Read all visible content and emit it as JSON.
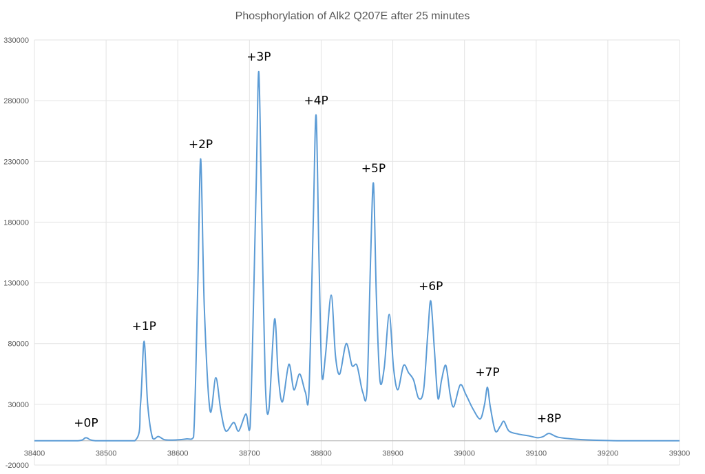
{
  "chart_data": {
    "type": "line",
    "title": "Phosphorylation of Alk2 Q207E after 25 minutes",
    "xlabel": "",
    "ylabel": "",
    "xlim": [
      38400,
      39300
    ],
    "ylim": [
      -20000,
      330000
    ],
    "grid": true,
    "legend": "none",
    "x_ticks": [
      38400,
      38500,
      38600,
      38700,
      38800,
      38900,
      39000,
      39100,
      39200,
      39300
    ],
    "x_tick_labels": [
      "38400",
      "38500",
      "38600",
      "38700",
      "38800",
      "38900",
      "39000",
      "39100",
      "39200",
      "39300"
    ],
    "y_ticks": [
      330000,
      280000,
      230000,
      180000,
      130000,
      80000,
      30000,
      -20000
    ],
    "y_tick_labels": [
      "330000",
      "280000",
      "230000",
      "180000",
      "130000",
      "80000",
      "30000",
      "-20000"
    ],
    "series": [
      {
        "color": "#5b9bd5",
        "points": [
          [
            38400,
            0
          ],
          [
            38460,
            0
          ],
          [
            38472,
            2500
          ],
          [
            38485,
            0
          ],
          [
            38540,
            0
          ],
          [
            38548,
            30000
          ],
          [
            38553,
            82000
          ],
          [
            38558,
            30000
          ],
          [
            38565,
            2000
          ],
          [
            38573,
            3500
          ],
          [
            38582,
            800
          ],
          [
            38598,
            700
          ],
          [
            38612,
            1500
          ],
          [
            38622,
            3000
          ],
          [
            38628,
            130000
          ],
          [
            38632,
            232000
          ],
          [
            38637,
            110000
          ],
          [
            38645,
            25000
          ],
          [
            38653,
            52000
          ],
          [
            38660,
            25000
          ],
          [
            38667,
            8000
          ],
          [
            38678,
            15000
          ],
          [
            38685,
            8000
          ],
          [
            38695,
            22000
          ],
          [
            38701,
            12000
          ],
          [
            38709,
            200000
          ],
          [
            38713,
            304000
          ],
          [
            38717,
            190000
          ],
          [
            38722,
            50000
          ],
          [
            38727,
            25000
          ],
          [
            38735,
            100000
          ],
          [
            38740,
            55000
          ],
          [
            38746,
            32000
          ],
          [
            38755,
            63000
          ],
          [
            38762,
            42000
          ],
          [
            38770,
            55000
          ],
          [
            38778,
            40000
          ],
          [
            38783,
            40000
          ],
          [
            38789,
            180000
          ],
          [
            38793,
            268000
          ],
          [
            38797,
            150000
          ],
          [
            38801,
            55000
          ],
          [
            38806,
            70000
          ],
          [
            38814,
            120000
          ],
          [
            38820,
            70000
          ],
          [
            38826,
            55000
          ],
          [
            38835,
            80000
          ],
          [
            38843,
            62000
          ],
          [
            38850,
            62000
          ],
          [
            38858,
            40000
          ],
          [
            38864,
            42000
          ],
          [
            38869,
            150000
          ],
          [
            38873,
            212000
          ],
          [
            38877,
            120000
          ],
          [
            38882,
            50000
          ],
          [
            38888,
            60000
          ],
          [
            38895,
            104000
          ],
          [
            38901,
            60000
          ],
          [
            38907,
            42000
          ],
          [
            38915,
            62000
          ],
          [
            38922,
            56000
          ],
          [
            38929,
            50000
          ],
          [
            38936,
            35000
          ],
          [
            38943,
            42000
          ],
          [
            38949,
            90000
          ],
          [
            38953,
            115000
          ],
          [
            38958,
            75000
          ],
          [
            38963,
            35000
          ],
          [
            38968,
            50000
          ],
          [
            38974,
            62000
          ],
          [
            38980,
            38000
          ],
          [
            38985,
            28000
          ],
          [
            38994,
            46000
          ],
          [
            39002,
            38000
          ],
          [
            39012,
            26000
          ],
          [
            39022,
            18000
          ],
          [
            39028,
            30000
          ],
          [
            39032,
            44000
          ],
          [
            39036,
            28000
          ],
          [
            39043,
            8000
          ],
          [
            39050,
            12000
          ],
          [
            39055,
            16000
          ],
          [
            39062,
            8000
          ],
          [
            39075,
            5500
          ],
          [
            39090,
            4000
          ],
          [
            39102,
            2500
          ],
          [
            39110,
            3500
          ],
          [
            39118,
            6000
          ],
          [
            39130,
            3000
          ],
          [
            39150,
            1500
          ],
          [
            39180,
            500
          ],
          [
            39220,
            0
          ],
          [
            39300,
            0
          ]
        ]
      }
    ],
    "annotations": [
      {
        "text": "+0P",
        "x": 38472,
        "y": 2500
      },
      {
        "text": "+1P",
        "x": 38553,
        "y": 82000
      },
      {
        "text": "+2P",
        "x": 38632,
        "y": 232000
      },
      {
        "text": "+3P",
        "x": 38713,
        "y": 304000
      },
      {
        "text": "+4P",
        "x": 38793,
        "y": 268000
      },
      {
        "text": "+5P",
        "x": 38873,
        "y": 212000
      },
      {
        "text": "+6P",
        "x": 38953,
        "y": 115000
      },
      {
        "text": "+7P",
        "x": 39032,
        "y": 44000
      },
      {
        "text": "+8P",
        "x": 39118,
        "y": 6000
      }
    ]
  }
}
